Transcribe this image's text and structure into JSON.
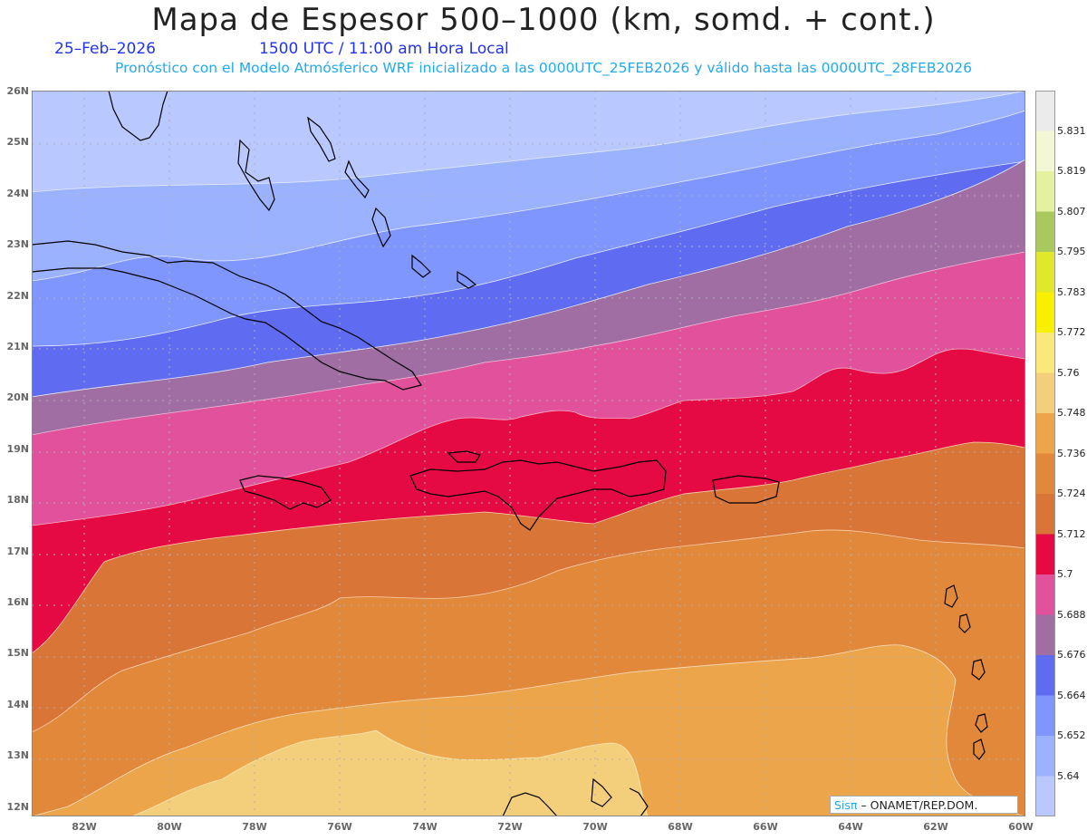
{
  "header": {
    "title": "Mapa de Espesor 500–1000 (km, somd. + cont.)",
    "date": "25–Feb–2026",
    "time": "1500 UTC / 11:00 am Hora Local",
    "model_info": "Pronóstico con el Modelo Atmósferico WRF inicializado a las 0000UTC_25FEB2026 y válido hasta las  0000UTC_28FEB2026"
  },
  "axes": {
    "lat_labels": [
      "26N",
      "25N",
      "24N",
      "23N",
      "22N",
      "21N",
      "20N",
      "19N",
      "18N",
      "17N",
      "16N",
      "15N",
      "14N",
      "13N",
      "12N"
    ],
    "lon_labels": [
      "82W",
      "80W",
      "78W",
      "76W",
      "74W",
      "72W",
      "70W",
      "68W",
      "66W",
      "64W",
      "62W",
      "60W"
    ]
  },
  "colorbar": {
    "labels": [
      "5.831",
      "5.819",
      "5.807",
      "5.795",
      "5.783",
      "5.772",
      "5.76",
      "5.748",
      "5.736",
      "5.724",
      "5.712",
      "5.7",
      "5.688",
      "5.676",
      "5.664",
      "5.652",
      "5.64"
    ],
    "colors": [
      "#ebebeb",
      "#f3f7d3",
      "#e4f2a0",
      "#a9c95e",
      "#dfe82a",
      "#f8f000",
      "#fbe87a",
      "#f3cf7c",
      "#eca54a",
      "#e2883a",
      "#d97536",
      "#e60a44",
      "#e2529c",
      "#a06ea2",
      "#5f6cf2",
      "#7f96ff",
      "#9ab2ff",
      "#b9c9ff"
    ]
  },
  "credit": {
    "brand": "Sisπ",
    "text": "– ONAMET/REP.DOM."
  }
}
